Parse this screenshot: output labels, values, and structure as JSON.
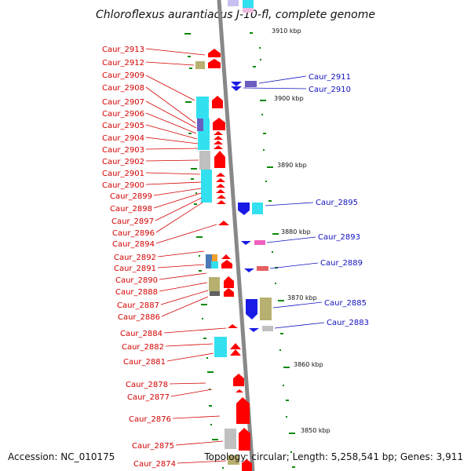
{
  "title": "Chloroflexus aurantiacus J-10-fl, complete genome",
  "footer": {
    "accession": "Accession: NC_010175",
    "summary": "Topology: circular; Length: 5,258,541 bp; Genes: 3,911"
  },
  "scale_labels": [
    "3910 kbp",
    "3900 kbp",
    "3890 kbp",
    "3880 kbp",
    "3870 kbp",
    "3860 kbp",
    "3850 kbp"
  ],
  "left_genes": [
    "Caur_2913",
    "Caur_2912",
    "Caur_2909",
    "Caur_2908",
    "Caur_2907",
    "Caur_2906",
    "Caur_2905",
    "Caur_2904",
    "Caur_2903",
    "Caur_2902",
    "Caur_2901",
    "Caur_2900",
    "Caur_2899",
    "Caur_2898",
    "Caur_2897",
    "Caur_2896",
    "Caur_2894",
    "Caur_2892",
    "Caur_2891",
    "Caur_2890",
    "Caur_2888",
    "Caur_2887",
    "Caur_2886",
    "Caur_2884",
    "Caur_2882",
    "Caur_2881",
    "Caur_2878",
    "Caur_2877",
    "Caur_2876",
    "Caur_2875",
    "Caur_2874"
  ],
  "right_genes": [
    "Caur_2911",
    "Caur_2910",
    "Caur_2895",
    "Caur_2893",
    "Caur_2889",
    "Caur_2885",
    "Caur_2883"
  ],
  "colors": {
    "forward_gene": "#ff0000",
    "reverse_gene": "#1a1ae6",
    "cog_cyan": "#33e0f0",
    "cog_olive": "#b8b070",
    "cog_gray": "#c0c0c0",
    "cog_purple": "#6b5cc0",
    "cog_pink": "#f060c0",
    "tick": "#0a8a0a",
    "backbone": "#888888",
    "left_label": "#d40000",
    "right_label": "#1010c0"
  }
}
